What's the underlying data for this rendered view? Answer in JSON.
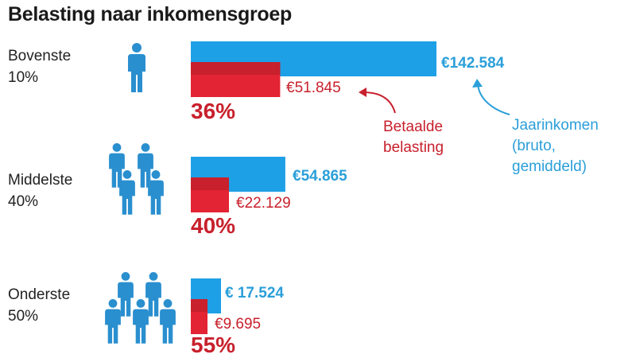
{
  "title": "Belasting naar inkomensgroep",
  "colors": {
    "income": "#1ea0e6",
    "tax": "#e32434",
    "tax_dark": "#c8202c",
    "income_text": "#2b9fd9",
    "icon": "#2a8fcf"
  },
  "chart_data": {
    "type": "bar",
    "categories": [
      "Bovenste 10%",
      "Middelste 40%",
      "Onderste 50%"
    ],
    "series": [
      {
        "name": "Jaarinkomen (bruto, gemiddeld)",
        "values": [
          142584,
          54865,
          17524
        ]
      },
      {
        "name": "Betaalde belasting",
        "values": [
          51845,
          22129,
          9695
        ]
      }
    ],
    "orientation": "horizontal",
    "xlim": [
      0,
      142584
    ],
    "grid": false,
    "legend": "annotations"
  },
  "groups": [
    {
      "line1": "Bovenste",
      "line2": "10%",
      "income_label": "€142.584",
      "tax_label": "€51.845",
      "pct": "36%",
      "icon": "person-icon",
      "people": 1
    },
    {
      "line1": "Middelste",
      "line2": "40%",
      "income_label": "€54.865",
      "tax_label": "€22.129",
      "pct": "40%",
      "icon": "person-icon",
      "people": 4
    },
    {
      "line1": "Onderste",
      "line2": "50%",
      "income_label": "€ 17.524",
      "tax_label": "€9.695",
      "pct": "55%",
      "icon": "person-icon",
      "people": 5
    }
  ],
  "annotations": {
    "tax": {
      "line1": "Betaalde",
      "line2": "belasting"
    },
    "income": {
      "line1": "Jaarinkomen",
      "line2": "(bruto,",
      "line3": "gemiddeld)"
    }
  }
}
